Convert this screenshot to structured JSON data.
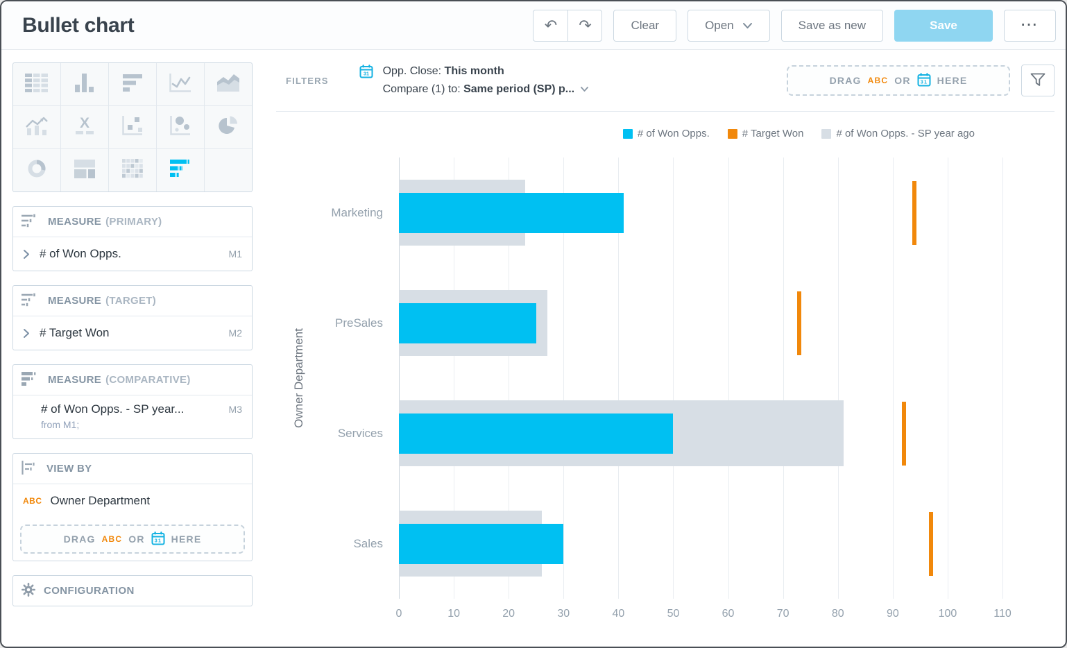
{
  "window_header": {
    "title": "Bullet chart",
    "clear_label": "Clear",
    "open_label": "Open",
    "save_as_new_label": "Save as new",
    "save_label": "Save",
    "more_label": "···"
  },
  "chart_picker": {
    "types": [
      "table",
      "column-chart",
      "bar-chart",
      "line-chart",
      "area-chart",
      "combo-chart",
      "headline",
      "scatter-plot",
      "bubble-chart",
      "pie-chart",
      "donut-chart",
      "treemap",
      "heatmap",
      "bullet-chart",
      "empty"
    ],
    "selected": "bullet-chart"
  },
  "buckets": {
    "primary": {
      "title": "MEASURE",
      "subtitle": "(PRIMARY)",
      "item": {
        "label": "# of Won Opps.",
        "badge": "M1"
      }
    },
    "target": {
      "title": "MEASURE",
      "subtitle": "(TARGET)",
      "item": {
        "label": "# Target Won",
        "badge": "M2"
      }
    },
    "comparative": {
      "title": "MEASURE",
      "subtitle": "(COMPARATIVE)",
      "item": {
        "label": "# of Won Opps. - SP year...",
        "badge": "M3",
        "detail": "from M1;"
      }
    },
    "view_by": {
      "title": "VIEW BY",
      "item": {
        "token": "ABC",
        "label": "Owner Department"
      },
      "dropzone": {
        "drag": "DRAG",
        "abc": "ABC",
        "or": "OR",
        "here": "HERE"
      }
    },
    "configuration": {
      "title": "CONFIGURATION"
    }
  },
  "filters": {
    "label": "FILTERS",
    "line1_prefix": "Opp. Close: ",
    "line1_value": "This month",
    "line2_prefix": "Compare (1) to: ",
    "line2_value": "Same period (SP) p...",
    "dropzone": {
      "drag": "DRAG",
      "abc": "ABC",
      "or": "OR",
      "here": "HERE"
    }
  },
  "chart_data": {
    "type": "bullet",
    "categories": [
      "Marketing",
      "PreSales",
      "Services",
      "Sales"
    ],
    "series": [
      {
        "name": "# of Won Opps.",
        "role": "primary",
        "color": "#00c0f2",
        "values": [
          41,
          25,
          50,
          30
        ]
      },
      {
        "name": "# Target Won",
        "role": "target",
        "color": "#f1880b",
        "values": [
          94,
          73,
          92,
          97
        ]
      },
      {
        "name": "# of Won Opps. - SP year ago",
        "role": "comparative",
        "color": "#d7dee5",
        "values": [
          23,
          27,
          81,
          26
        ]
      }
    ],
    "xlabel": "",
    "ylabel": "Owner Department",
    "xticks": [
      0,
      10,
      20,
      30,
      40,
      50,
      60,
      70,
      80,
      90,
      100,
      110
    ],
    "xlim": [
      0,
      110.5
    ],
    "grid": "vertical",
    "legend_position": "top-right"
  },
  "colors": {
    "accent_cyan": "#00c0f2",
    "accent_orange": "#f1880b",
    "comparative_gray": "#d7dee5",
    "save_button_bg": "#8fd6f1",
    "calendar_blue": "#14b2e2"
  }
}
